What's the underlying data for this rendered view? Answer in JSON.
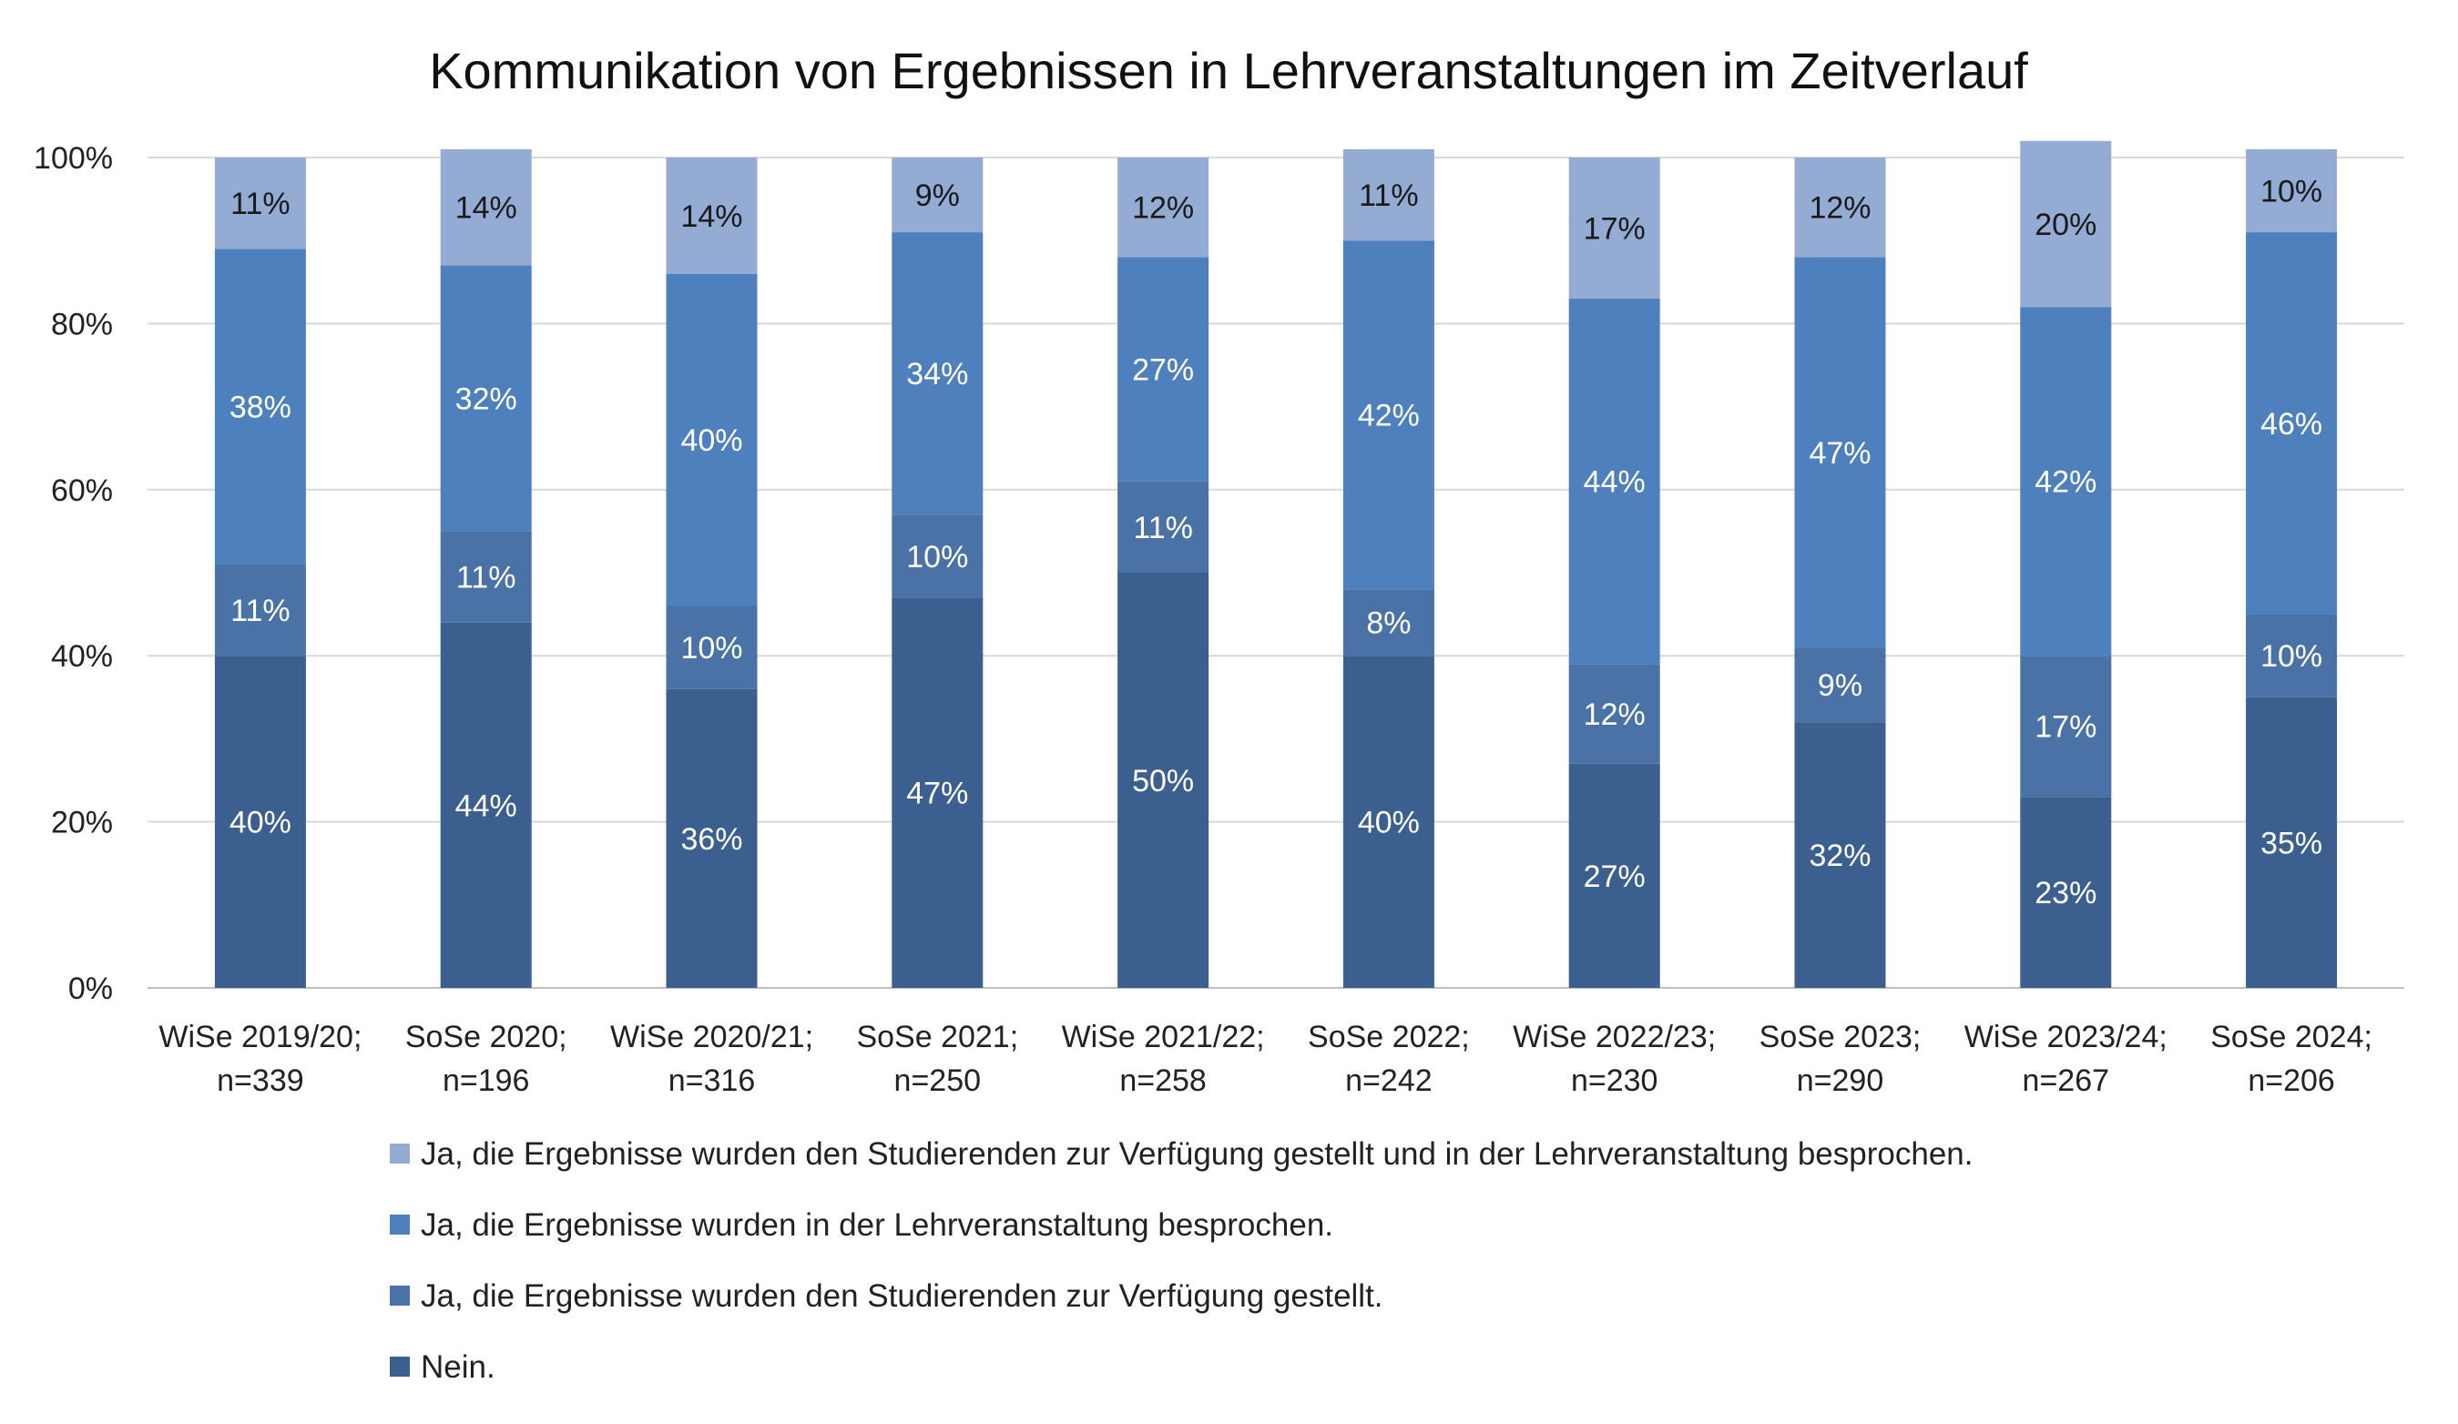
{
  "chart_data": {
    "type": "bar",
    "stacked": true,
    "title": "Kommunikation von Ergebnissen in Lehrveranstaltungen im Zeitverlauf",
    "xlabel": "",
    "ylabel": "",
    "ylim": [
      0,
      100
    ],
    "y_ticks": [
      "0%",
      "20%",
      "40%",
      "60%",
      "80%",
      "100%"
    ],
    "grid": true,
    "legend_position": "bottom",
    "categories": [
      [
        "WiSe 2019/20;",
        "n=339"
      ],
      [
        "SoSe 2020;",
        "n=196"
      ],
      [
        "WiSe 2020/21;",
        "n=316"
      ],
      [
        "SoSe 2021;",
        "n=250"
      ],
      [
        "WiSe 2021/22;",
        "n=258"
      ],
      [
        "SoSe 2022;",
        "n=242"
      ],
      [
        "WiSe 2022/23;",
        "n=230"
      ],
      [
        "SoSe 2023;",
        "n=290"
      ],
      [
        "WiSe 2023/24;",
        "n=267"
      ],
      [
        "SoSe 2024;",
        "n=206"
      ]
    ],
    "series": [
      {
        "name": "Nein.",
        "color": "#3b5f8f",
        "label_color": "#ffffff",
        "values": [
          40,
          44,
          36,
          47,
          50,
          40,
          27,
          32,
          23,
          35
        ],
        "labels": [
          "40%",
          "44%",
          "36%",
          "47%",
          "50%",
          "40%",
          "27%",
          "32%",
          "23%",
          "35%"
        ]
      },
      {
        "name": "Ja, die Ergebnisse wurden den Studierenden zur Verfügung gestellt.",
        "color": "#4a72a6",
        "label_color": "#ffffff",
        "values": [
          11,
          11,
          10,
          10,
          11,
          8,
          12,
          9,
          17,
          10
        ],
        "labels": [
          "11%",
          "11%",
          "10%",
          "10%",
          "11%",
          "8%",
          "12%",
          "9%",
          "17%",
          "10%"
        ]
      },
      {
        "name": "Ja, die Ergebnisse wurden in der Lehrveranstaltung besprochen.",
        "color": "#4d80bd",
        "label_color": "#ffffff",
        "values": [
          38,
          32,
          40,
          34,
          27,
          42,
          44,
          47,
          42,
          46
        ],
        "labels": [
          "38%",
          "32%",
          "40%",
          "34%",
          "27%",
          "42%",
          "44%",
          "47%",
          "42%",
          "46%"
        ]
      },
      {
        "name": "Ja, die Ergebnisse wurden den Studierenden zur Verfügung gestellt und in der Lehrveranstaltung besprochen.",
        "color": "#94abd3",
        "label_color": "#1a1a1a",
        "values": [
          11,
          14,
          14,
          9,
          12,
          11,
          17,
          12,
          20,
          10
        ],
        "labels": [
          "11%",
          "14%",
          "14%",
          "9%",
          "12%",
          "11%",
          "17%",
          "12%",
          "20%",
          "10%"
        ]
      }
    ]
  }
}
